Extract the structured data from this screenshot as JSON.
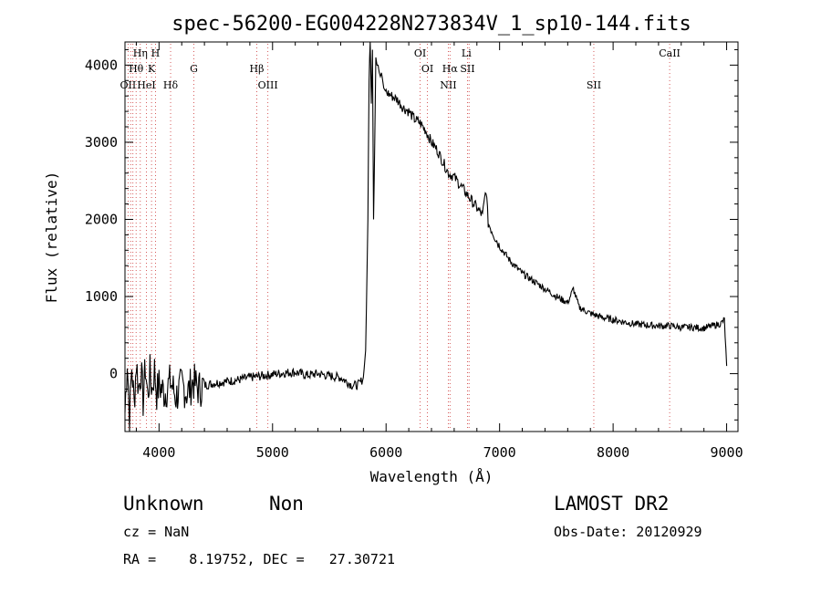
{
  "chart_data": {
    "type": "line",
    "title": "spec-56200-EG004228N273834V_1_sp10-144.fits",
    "xlabel": "Wavelength (Å)",
    "ylabel": "Flux (relative)",
    "xlim": [
      3700,
      9100
    ],
    "ylim": [
      -750,
      4300
    ],
    "xticks": [
      4000,
      5000,
      6000,
      7000,
      8000,
      9000
    ],
    "yticks": [
      0,
      1000,
      2000,
      3000,
      4000
    ],
    "x_tick_labels": [
      "4000",
      "5000",
      "6000",
      "7000",
      "8000",
      "9000"
    ],
    "y_tick_labels": [
      "0",
      "1000",
      "2000",
      "3000",
      "4000"
    ],
    "grid": false,
    "series": [
      {
        "x": [
          3700,
          3720,
          3740,
          3760,
          3780,
          3800,
          3820,
          3840,
          3860,
          3880,
          3900,
          3920,
          3940,
          3960,
          3980,
          4000,
          4050,
          4100,
          4150,
          4200,
          4250,
          4300,
          4350,
          4400,
          4500,
          4600,
          4700,
          4800,
          4900,
          5000,
          5100,
          5200,
          5300,
          5400,
          5500,
          5600,
          5700,
          5750,
          5780,
          5800,
          5820,
          5840,
          5850,
          5860,
          5870,
          5880,
          5890,
          5900,
          5910,
          5920,
          5930,
          5940,
          5950,
          5960,
          5970,
          5980,
          6000,
          6050,
          6100,
          6150,
          6200,
          6250,
          6300,
          6350,
          6400,
          6450,
          6500,
          6550,
          6600,
          6650,
          6700,
          6750,
          6800,
          6850,
          6880,
          6900,
          6950,
          7000,
          7100,
          7200,
          7300,
          7400,
          7500,
          7600,
          7650,
          7700,
          7800,
          7900,
          8000,
          8100,
          8200,
          8300,
          8400,
          8500,
          8600,
          8700,
          8800,
          8900,
          8950,
          8980,
          9000
        ],
        "y": [
          -500,
          200,
          -600,
          100,
          -400,
          150,
          -200,
          50,
          -350,
          100,
          -300,
          0,
          -200,
          50,
          -250,
          -150,
          -250,
          -100,
          -300,
          -150,
          -250,
          -100,
          -200,
          -150,
          -120,
          -100,
          -80,
          -50,
          -30,
          -10,
          10,
          20,
          -20,
          0,
          -30,
          -50,
          -150,
          -150,
          -100,
          -50,
          300,
          2000,
          3800,
          4400,
          3500,
          4200,
          2000,
          3000,
          4100,
          4000,
          4000,
          3900,
          3850,
          3900,
          3800,
          3700,
          3650,
          3600,
          3550,
          3450,
          3400,
          3300,
          3250,
          3150,
          3000,
          2900,
          2750,
          2600,
          2550,
          2450,
          2350,
          2250,
          2150,
          2050,
          2400,
          1950,
          1800,
          1650,
          1450,
          1300,
          1200,
          1100,
          1000,
          920,
          1100,
          860,
          780,
          730,
          700,
          670,
          640,
          630,
          620,
          620,
          600,
          600,
          590,
          630,
          650,
          700,
          100
        ]
      }
    ],
    "lines": {
      "top_row": [
        {
          "label": "Hη",
          "x": 3835
        },
        {
          "label": "H",
          "x": 3969
        },
        {
          "label": "OI",
          "x": 6300
        },
        {
          "label": "Li",
          "x": 6708
        },
        {
          "label": "CaII",
          "x": 8498
        }
      ],
      "labels_row2": [
        {
          "label": "Hβ",
          "x": 4861
        },
        {
          "label": "Hθ",
          "x": 3798
        },
        {
          "label": "K",
          "x": 3934
        },
        {
          "label": "G",
          "x": 4307
        },
        {
          "label": "OI",
          "x": 6364
        },
        {
          "label": "Hα",
          "x": 6563
        },
        {
          "label": "SII",
          "x": 6717
        }
      ],
      "labels_row3": [
        {
          "label": "OII",
          "x": 3727
        },
        {
          "label": "HeI",
          "x": 3889
        },
        {
          "label": "Hδ",
          "x": 4102
        },
        {
          "label": "OIII",
          "x": 4959
        },
        {
          "label": "NII",
          "x": 6548
        },
        {
          "label": "SII",
          "x": 7830
        }
      ],
      "dotted_lines": [
        3727,
        3750,
        3770,
        3798,
        3835,
        3889,
        3934,
        3969,
        4102,
        4307,
        4861,
        4959,
        6300,
        6364,
        6548,
        6563,
        6717,
        6731,
        7830,
        8498
      ]
    },
    "line_color": "#cc3333"
  },
  "info": {
    "obj_class": "Unknown",
    "obj_subclass": "Non",
    "survey": "LAMOST DR2",
    "cz": "cz = NaN",
    "obs_date": "Obs-Date: 20120929",
    "radec": "RA =    8.19752, DEC =   27.30721"
  }
}
